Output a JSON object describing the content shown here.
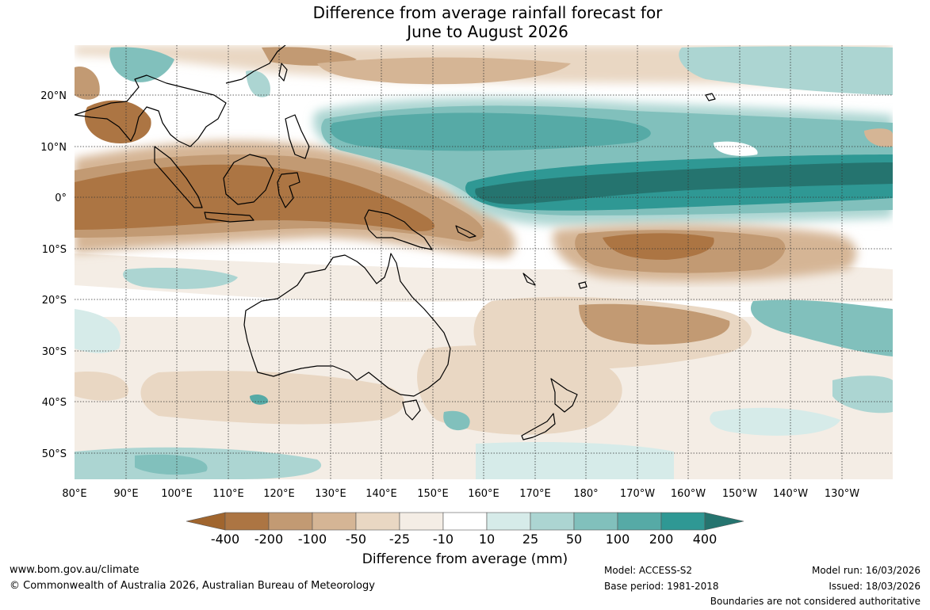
{
  "title": {
    "line1": "Difference from average rainfall forecast for",
    "line2": "June to August 2026"
  },
  "map": {
    "lat_labels": [
      "20°N",
      "10°N",
      "0°",
      "10°S",
      "20°S",
      "30°S",
      "40°S",
      "50°S"
    ],
    "lon_labels": [
      "80°E",
      "90°E",
      "100°E",
      "110°E",
      "120°E",
      "130°E",
      "140°E",
      "150°E",
      "160°E",
      "170°E",
      "180°",
      "170°W",
      "160°W",
      "150°W",
      "140°W",
      "130°W"
    ]
  },
  "legend": {
    "title": "Difference from average (mm)",
    "labels": [
      "-400",
      "-200",
      "-100",
      "-50",
      "-25",
      "-10",
      "10",
      "25",
      "50",
      "100",
      "200",
      "400"
    ],
    "colors": [
      "#a0652e",
      "#ac7543",
      "#c29a73",
      "#d5b595",
      "#e9d7c3",
      "#f4ede5",
      "#ffffff",
      "#d6ebe9",
      "#acd5d2",
      "#81c0bc",
      "#56aaa6",
      "#2f9894",
      "#25746f"
    ]
  },
  "footer": {
    "website": "www.bom.gov.au/climate",
    "copyright": "© Commonwealth of Australia 2026, Australian Bureau of Meteorology",
    "model": "Model: ACCESS-S2",
    "base_period": "Base period: 1981-2018",
    "model_run": "Model run: 16/03/2026",
    "issued": "Issued: 18/03/2026",
    "boundaries": "Boundaries are not considered authoritative"
  }
}
